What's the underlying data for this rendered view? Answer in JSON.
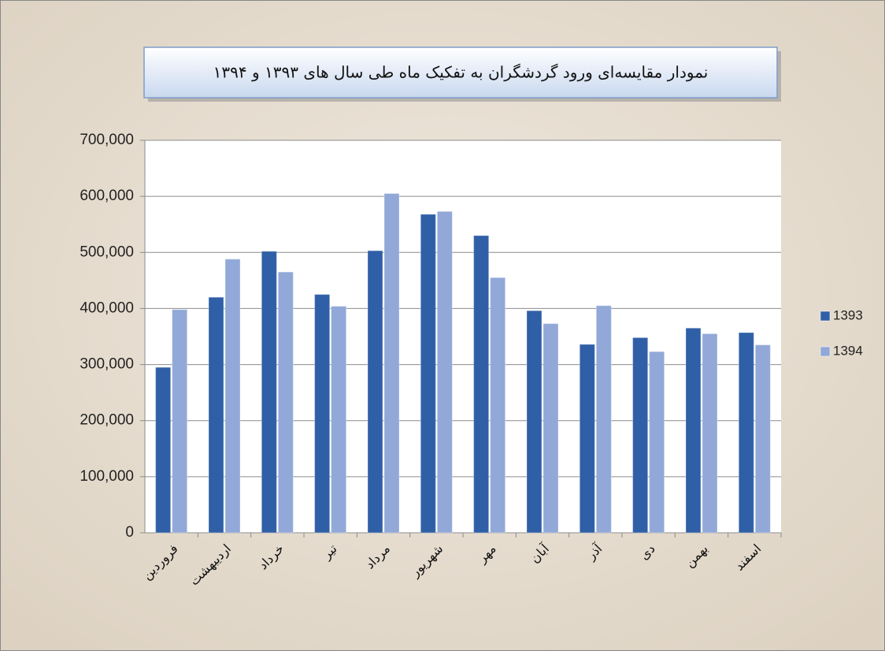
{
  "chart_data": {
    "type": "bar",
    "title": "نمودار مقایسه‌ای ورود گردشگران به تفکیک ماه طی سال های ۱۳۹۳ و ۱۳۹۴",
    "categories": [
      "فروردین",
      "اردیبهشت",
      "خرداد",
      "تیر",
      "مرداد",
      "شهریور",
      "مهر",
      "آبان",
      "آذر",
      "دی",
      "بهمن",
      "اسفند"
    ],
    "series": [
      {
        "name": "1393",
        "color": "#2f5fa6",
        "values": [
          295000,
          420000,
          502000,
          425000,
          503000,
          568000,
          530000,
          396000,
          336000,
          348000,
          365000,
          357000
        ]
      },
      {
        "name": "1394",
        "color": "#91a8d8",
        "values": [
          398000,
          488000,
          465000,
          404000,
          605000,
          573000,
          455000,
          373000,
          405000,
          323000,
          355000,
          335000
        ]
      }
    ],
    "ylim": [
      0,
      700000
    ],
    "yticks": [
      0,
      {
        "value": 100000,
        "label": "100,000"
      },
      {
        "value": 200000,
        "label": "200,000"
      },
      {
        "value": 300000,
        "label": "300,000"
      },
      {
        "value": 400000,
        "label": "400,000"
      },
      {
        "value": 500000,
        "label": "500,000"
      },
      {
        "value": 600000,
        "label": "600,000"
      },
      {
        "value": 700000,
        "label": "700,000"
      }
    ],
    "grid": true,
    "legend": "right"
  }
}
